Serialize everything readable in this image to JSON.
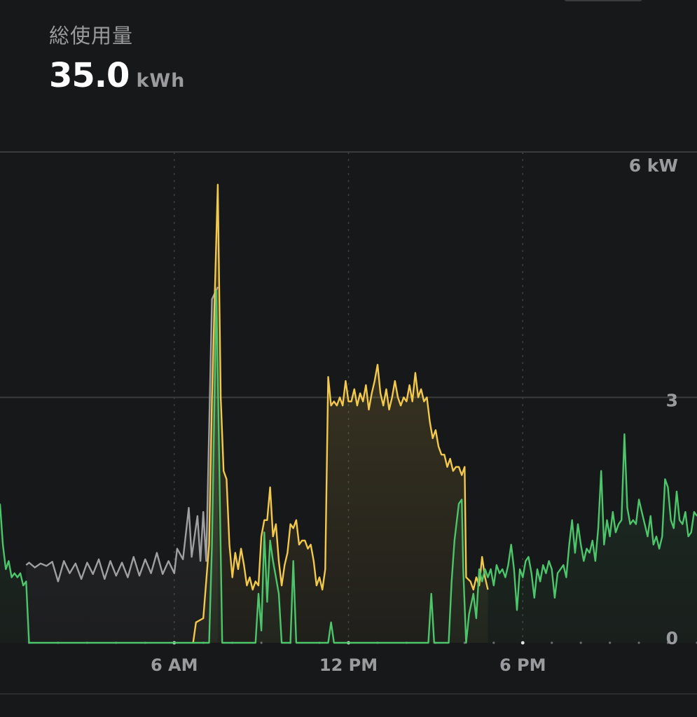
{
  "header": {
    "label": "総使用量",
    "value": "35.0",
    "unit": "kWh"
  },
  "colors": {
    "background": "#171819",
    "grid": "#3b3c3e",
    "gray_series": "#a0a0a3",
    "yellow_series": "#f2c94c",
    "green_series": "#4cc56b",
    "label": "#9b9b9f"
  },
  "chart_data": {
    "type": "area",
    "x_unit": "hour of day",
    "xlim": [
      0,
      24
    ],
    "ylim": [
      0,
      6
    ],
    "x_ticks": [
      {
        "value": 6,
        "label": "6 AM"
      },
      {
        "value": 12,
        "label": "12 PM"
      },
      {
        "value": 18,
        "label": "6 PM"
      }
    ],
    "y_ticks": [
      {
        "value": 6,
        "label": "6 kW"
      },
      {
        "value": 3,
        "label": "3"
      },
      {
        "value": 0,
        "label": "0"
      }
    ],
    "grid": "horizontal solid at 3 and 6; vertical dotted at 6 AM, 12 PM, 6 PM",
    "legend": "none",
    "series": [
      {
        "color": "gray",
        "points": [
          [
            0.9,
            0.95
          ],
          [
            1.0,
            0.98
          ],
          [
            1.2,
            0.92
          ],
          [
            1.4,
            0.97
          ],
          [
            1.6,
            0.94
          ],
          [
            1.8,
            0.99
          ],
          [
            2.0,
            0.75
          ],
          [
            2.2,
            1.0
          ],
          [
            2.4,
            0.85
          ],
          [
            2.6,
            0.97
          ],
          [
            2.8,
            0.78
          ],
          [
            3.0,
            0.98
          ],
          [
            3.2,
            0.84
          ],
          [
            3.4,
            1.02
          ],
          [
            3.6,
            0.78
          ],
          [
            3.8,
            1.0
          ],
          [
            4.0,
            0.82
          ],
          [
            4.2,
            0.98
          ],
          [
            4.4,
            0.8
          ],
          [
            4.6,
            1.05
          ],
          [
            4.8,
            0.82
          ],
          [
            5.0,
            1.02
          ],
          [
            5.2,
            0.85
          ],
          [
            5.4,
            1.1
          ],
          [
            5.6,
            0.84
          ],
          [
            5.8,
            1.0
          ],
          [
            6.0,
            0.85
          ],
          [
            6.1,
            1.15
          ],
          [
            6.3,
            1.02
          ],
          [
            6.5,
            1.65
          ],
          [
            6.6,
            1.05
          ],
          [
            6.8,
            1.55
          ],
          [
            6.9,
            1.0
          ],
          [
            7.0,
            1.6
          ],
          [
            7.1,
            1.0
          ],
          [
            7.3,
            4.2
          ],
          [
            7.5,
            4.35
          ]
        ]
      },
      {
        "color": "yellow",
        "points": [
          [
            6.65,
            0.0
          ],
          [
            6.75,
            0.25
          ],
          [
            7.0,
            0.3
          ],
          [
            7.2,
            1.2
          ],
          [
            7.3,
            3.0
          ],
          [
            7.5,
            5.6
          ],
          [
            7.6,
            3.0
          ],
          [
            7.7,
            2.1
          ],
          [
            7.8,
            2.0
          ],
          [
            7.9,
            1.2
          ],
          [
            8.0,
            0.8
          ],
          [
            8.1,
            1.1
          ],
          [
            8.2,
            0.9
          ],
          [
            8.3,
            1.15
          ],
          [
            8.4,
            0.95
          ],
          [
            8.5,
            0.7
          ],
          [
            8.6,
            0.8
          ],
          [
            8.7,
            0.65
          ],
          [
            8.8,
            0.75
          ],
          [
            8.9,
            0.7
          ],
          [
            9.0,
            1.3
          ],
          [
            9.1,
            1.5
          ],
          [
            9.2,
            1.5
          ],
          [
            9.3,
            1.9
          ],
          [
            9.4,
            1.3
          ],
          [
            9.5,
            1.45
          ],
          [
            9.6,
            1.0
          ],
          [
            9.7,
            0.7
          ],
          [
            9.8,
            0.95
          ],
          [
            9.9,
            1.1
          ],
          [
            10.0,
            1.45
          ],
          [
            10.1,
            1.4
          ],
          [
            10.2,
            1.5
          ],
          [
            10.3,
            1.2
          ],
          [
            10.4,
            1.25
          ],
          [
            10.5,
            1.25
          ],
          [
            10.6,
            1.15
          ],
          [
            10.7,
            1.2
          ],
          [
            10.8,
            1.0
          ],
          [
            10.9,
            0.7
          ],
          [
            11.0,
            0.8
          ],
          [
            11.1,
            0.65
          ],
          [
            11.2,
            0.9
          ],
          [
            11.3,
            3.25
          ],
          [
            11.4,
            2.9
          ],
          [
            11.5,
            2.95
          ],
          [
            11.6,
            2.9
          ],
          [
            11.7,
            3.0
          ],
          [
            11.8,
            2.9
          ],
          [
            11.9,
            3.2
          ],
          [
            12.0,
            2.95
          ],
          [
            12.1,
            2.95
          ],
          [
            12.2,
            3.1
          ],
          [
            12.3,
            2.9
          ],
          [
            12.4,
            3.05
          ],
          [
            12.5,
            2.95
          ],
          [
            12.6,
            3.15
          ],
          [
            12.7,
            2.85
          ],
          [
            12.8,
            3.05
          ],
          [
            12.9,
            3.2
          ],
          [
            13.0,
            3.4
          ],
          [
            13.1,
            3.05
          ],
          [
            13.2,
            2.9
          ],
          [
            13.3,
            3.1
          ],
          [
            13.4,
            2.85
          ],
          [
            13.5,
            3.0
          ],
          [
            13.6,
            3.2
          ],
          [
            13.7,
            3.0
          ],
          [
            13.8,
            2.9
          ],
          [
            13.9,
            3.0
          ],
          [
            14.0,
            2.95
          ],
          [
            14.1,
            3.15
          ],
          [
            14.2,
            2.95
          ],
          [
            14.3,
            3.3
          ],
          [
            14.4,
            3.0
          ],
          [
            14.5,
            3.1
          ],
          [
            14.6,
            2.95
          ],
          [
            14.7,
            3.0
          ],
          [
            14.8,
            2.7
          ],
          [
            14.9,
            2.5
          ],
          [
            15.0,
            2.6
          ],
          [
            15.1,
            2.4
          ],
          [
            15.2,
            2.3
          ],
          [
            15.3,
            2.3
          ],
          [
            15.4,
            2.15
          ],
          [
            15.5,
            2.25
          ],
          [
            15.6,
            2.1
          ],
          [
            15.7,
            2.15
          ],
          [
            15.8,
            2.15
          ],
          [
            15.9,
            2.05
          ],
          [
            16.0,
            2.15
          ],
          [
            16.05,
            0.8
          ],
          [
            16.2,
            0.75
          ],
          [
            16.3,
            0.65
          ],
          [
            16.4,
            0.8
          ],
          [
            16.5,
            0.7
          ],
          [
            16.6,
            1.05
          ],
          [
            16.7,
            0.8
          ],
          [
            16.8,
            0.65
          ]
        ]
      },
      {
        "color": "green",
        "points": [
          [
            0.0,
            1.7
          ],
          [
            0.1,
            1.2
          ],
          [
            0.2,
            0.9
          ],
          [
            0.3,
            1.0
          ],
          [
            0.4,
            0.8
          ],
          [
            0.5,
            0.85
          ],
          [
            0.6,
            0.8
          ],
          [
            0.7,
            0.85
          ],
          [
            0.8,
            0.7
          ],
          [
            0.9,
            0.75
          ],
          [
            1.0,
            0.0
          ],
          [
            7.2,
            0.0
          ],
          [
            7.3,
            1.2
          ],
          [
            7.45,
            4.3
          ],
          [
            7.55,
            2.2
          ],
          [
            7.65,
            0.0
          ],
          [
            8.8,
            0.0
          ],
          [
            8.9,
            0.6
          ],
          [
            9.0,
            0.15
          ],
          [
            9.1,
            1.35
          ],
          [
            9.2,
            0.5
          ],
          [
            9.3,
            1.25
          ],
          [
            9.4,
            1.0
          ],
          [
            9.5,
            0.8
          ],
          [
            9.6,
            0.6
          ],
          [
            9.7,
            0.0
          ],
          [
            10.0,
            0.0
          ],
          [
            10.1,
            1.0
          ],
          [
            10.2,
            0.0
          ],
          [
            11.3,
            0.0
          ],
          [
            11.4,
            0.25
          ],
          [
            11.5,
            0.0
          ],
          [
            14.75,
            0.0
          ],
          [
            14.85,
            0.6
          ],
          [
            14.95,
            0.0
          ],
          [
            15.45,
            0.0
          ],
          [
            15.55,
            0.75
          ],
          [
            15.65,
            1.25
          ],
          [
            15.8,
            1.7
          ],
          [
            15.9,
            1.75
          ],
          [
            15.95,
            0.9
          ],
          [
            16.05,
            0.0
          ],
          [
            16.15,
            0.35
          ],
          [
            16.3,
            0.6
          ],
          [
            16.4,
            0.3
          ],
          [
            16.5,
            0.9
          ],
          [
            16.6,
            0.75
          ],
          [
            16.7,
            0.9
          ],
          [
            16.8,
            0.8
          ],
          [
            16.9,
            0.9
          ],
          [
            17.0,
            0.7
          ],
          [
            17.1,
            0.95
          ],
          [
            17.2,
            0.85
          ],
          [
            17.3,
            0.9
          ],
          [
            17.4,
            0.8
          ],
          [
            17.5,
            0.95
          ],
          [
            17.6,
            1.2
          ],
          [
            17.7,
            0.9
          ],
          [
            17.8,
            0.4
          ],
          [
            17.9,
            0.9
          ],
          [
            18.0,
            0.8
          ],
          [
            18.1,
            1.0
          ],
          [
            18.2,
            1.05
          ],
          [
            18.3,
            0.85
          ],
          [
            18.4,
            0.55
          ],
          [
            18.5,
            0.9
          ],
          [
            18.6,
            0.75
          ],
          [
            18.7,
            0.95
          ],
          [
            18.8,
            0.85
          ],
          [
            18.9,
            1.0
          ],
          [
            19.0,
            0.9
          ],
          [
            19.1,
            0.55
          ],
          [
            19.2,
            0.85
          ],
          [
            19.3,
            0.9
          ],
          [
            19.4,
            0.95
          ],
          [
            19.5,
            0.8
          ],
          [
            19.6,
            1.2
          ],
          [
            19.7,
            1.5
          ],
          [
            19.8,
            1.1
          ],
          [
            19.9,
            1.45
          ],
          [
            20.0,
            1.2
          ],
          [
            20.1,
            1.0
          ],
          [
            20.2,
            1.15
          ],
          [
            20.3,
            1.1
          ],
          [
            20.4,
            1.25
          ],
          [
            20.5,
            1.0
          ],
          [
            20.6,
            1.4
          ],
          [
            20.7,
            2.1
          ],
          [
            20.8,
            1.2
          ],
          [
            20.9,
            1.5
          ],
          [
            21.0,
            1.3
          ],
          [
            21.1,
            1.6
          ],
          [
            21.2,
            1.35
          ],
          [
            21.3,
            1.45
          ],
          [
            21.4,
            1.5
          ],
          [
            21.5,
            2.55
          ],
          [
            21.6,
            1.65
          ],
          [
            21.7,
            1.45
          ],
          [
            21.8,
            1.5
          ],
          [
            21.9,
            1.45
          ],
          [
            22.0,
            1.75
          ],
          [
            22.1,
            1.6
          ],
          [
            22.2,
            1.45
          ],
          [
            22.3,
            1.3
          ],
          [
            22.4,
            1.55
          ],
          [
            22.5,
            1.2
          ],
          [
            22.6,
            1.3
          ],
          [
            22.7,
            1.15
          ],
          [
            22.8,
            1.3
          ],
          [
            22.9,
            2.0
          ],
          [
            23.0,
            1.9
          ],
          [
            23.1,
            1.5
          ],
          [
            23.2,
            1.4
          ],
          [
            23.3,
            1.85
          ],
          [
            23.4,
            1.5
          ],
          [
            23.5,
            1.45
          ],
          [
            23.6,
            1.6
          ],
          [
            23.7,
            1.3
          ],
          [
            23.8,
            1.35
          ],
          [
            23.9,
            1.6
          ],
          [
            24.0,
            1.55
          ]
        ]
      }
    ]
  }
}
